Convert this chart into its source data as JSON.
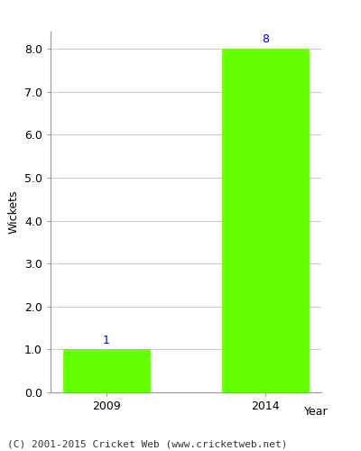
{
  "categories": [
    "2009",
    "2014"
  ],
  "values": [
    1,
    8
  ],
  "bar_color": "#66ff00",
  "bar_edge_color": "#66ff00",
  "xlabel": "Year",
  "ylabel": "Wickets",
  "ylim": [
    0.0,
    8.4
  ],
  "yticks": [
    0.0,
    1.0,
    2.0,
    3.0,
    4.0,
    5.0,
    6.0,
    7.0,
    8.0
  ],
  "label_color": "#0000cc",
  "label_fontsize": 9,
  "axis_label_fontsize": 9,
  "tick_fontsize": 9,
  "footer_text": "(C) 2001-2015 Cricket Web (www.cricketweb.net)",
  "footer_fontsize": 8,
  "background_color": "#ffffff",
  "grid_color": "#cccccc",
  "bar_width": 0.55
}
